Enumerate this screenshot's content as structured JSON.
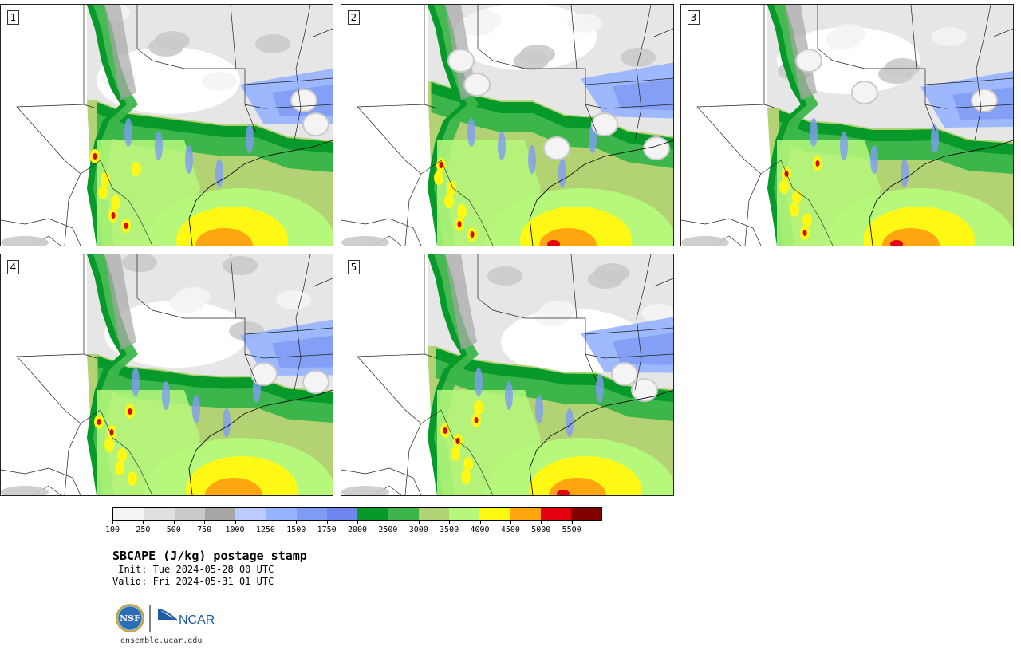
{
  "panels": [
    {
      "label": "1",
      "variant": 0
    },
    {
      "label": "2",
      "variant": 1
    },
    {
      "label": "3",
      "variant": 2
    },
    {
      "label": "4",
      "variant": 3
    },
    {
      "label": "5",
      "variant": 4
    }
  ],
  "colorbar": {
    "colors": [
      "#f4f4f4",
      "#e0e0e0",
      "#cacaca",
      "#a6a6a6",
      "#bccbff",
      "#96b3ff",
      "#7f9cf5",
      "#6f86f0",
      "#079a2a",
      "#3cb64a",
      "#b3d273",
      "#b5f87b",
      "#fff814",
      "#ffa510",
      "#e5000e",
      "#830000"
    ],
    "tick_labels": [
      "100",
      "250",
      "500",
      "750",
      "1000",
      "1250",
      "1500",
      "1750",
      "2000",
      "2500",
      "3000",
      "3500",
      "4000",
      "4500",
      "5000",
      "5500"
    ]
  },
  "title": "SBCAPE (J/kg) postage stamp",
  "init": " Init: Tue 2024-05-28 00 UTC",
  "valid": "Valid: Fri 2024-05-31 01 UTC",
  "logos": {
    "nsf": "NSF",
    "ncar": "NCAR"
  },
  "website": "ensemble.ucar.edu"
}
